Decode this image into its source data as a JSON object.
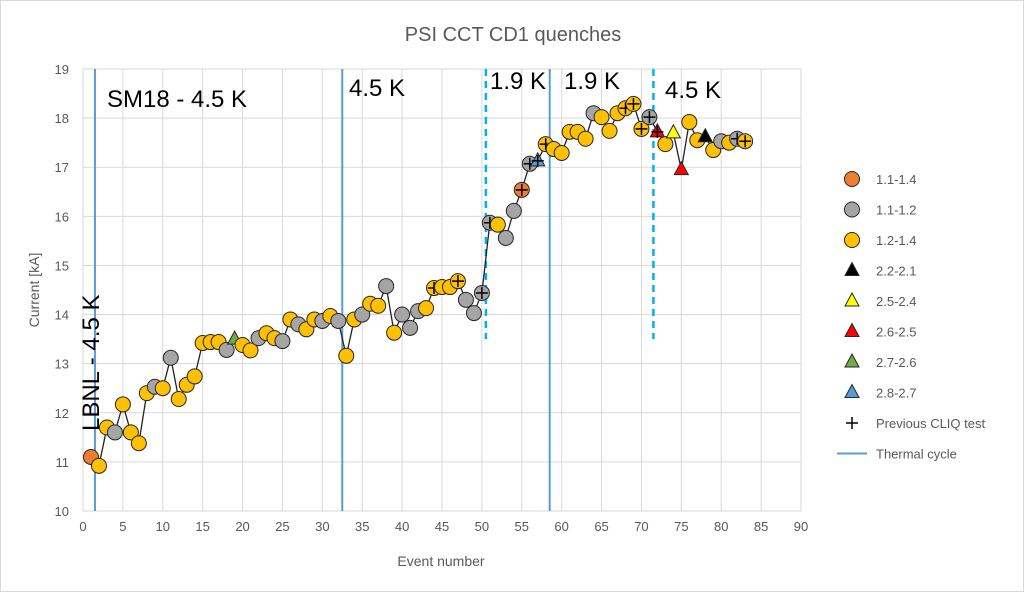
{
  "chart_data": {
    "type": "scatter",
    "title": "PSI CCT CD1 quenches",
    "xlabel": "Event number",
    "ylabel": "Current [kA]",
    "xlim": [
      0,
      90
    ],
    "ylim": [
      10,
      19
    ],
    "xticks": [
      "0",
      "5",
      "10",
      "15",
      "20",
      "25",
      "30",
      "35",
      "40",
      "45",
      "50",
      "55",
      "60",
      "65",
      "70",
      "75",
      "80",
      "85",
      "90"
    ],
    "yticks": [
      "10",
      "11",
      "12",
      "13",
      "14",
      "15",
      "16",
      "17",
      "18",
      "19"
    ],
    "grid": true,
    "legend_position": "right",
    "series": [
      {
        "name": "1.1-1.4",
        "marker": "circle",
        "color": "#ED7D31"
      },
      {
        "name": "1.1-1.2",
        "marker": "circle",
        "color": "#A5A5A5"
      },
      {
        "name": "1.2-1.4",
        "marker": "circle",
        "color": "#FFC000"
      },
      {
        "name": "2.2-2.1",
        "marker": "triangle",
        "color": "#000000"
      },
      {
        "name": "2.5-2.4",
        "marker": "triangle",
        "color": "#FFFF00"
      },
      {
        "name": "2.6-2.5",
        "marker": "triangle",
        "color": "#FF0000"
      },
      {
        "name": "2.7-2.6",
        "marker": "triangle",
        "color": "#70AD47"
      },
      {
        "name": "2.8-2.7",
        "marker": "triangle",
        "color": "#5B9BD5"
      },
      {
        "name": "Previous CLIQ test",
        "marker": "plus",
        "color": "#000000"
      },
      {
        "name": "Thermal cycle",
        "marker": "line",
        "color": "#5B9BD5"
      }
    ],
    "points": [
      [
        1,
        11.1,
        "1.1-1.4",
        0
      ],
      [
        2,
        10.92,
        "1.2-1.4",
        0
      ],
      [
        3,
        11.7,
        "1.2-1.4",
        0
      ],
      [
        4,
        11.6,
        "1.1-1.2",
        0
      ],
      [
        5,
        12.17,
        "1.2-1.4",
        0
      ],
      [
        6,
        11.6,
        "1.2-1.4",
        0
      ],
      [
        7,
        11.38,
        "1.2-1.4",
        0
      ],
      [
        8,
        12.4,
        "1.2-1.4",
        0
      ],
      [
        9,
        12.53,
        "1.1-1.2",
        0
      ],
      [
        10,
        12.5,
        "1.2-1.4",
        0
      ],
      [
        11,
        13.12,
        "1.1-1.2",
        0
      ],
      [
        12,
        12.28,
        "1.2-1.4",
        0
      ],
      [
        13,
        12.57,
        "1.2-1.4",
        0
      ],
      [
        14,
        12.74,
        "1.2-1.4",
        0
      ],
      [
        15,
        13.42,
        "1.2-1.4",
        0
      ],
      [
        16,
        13.44,
        "1.2-1.4",
        0
      ],
      [
        17,
        13.44,
        "1.2-1.4",
        0
      ],
      [
        18,
        13.28,
        "1.1-1.2",
        0
      ],
      [
        19,
        13.5,
        "2.7-2.6",
        0
      ],
      [
        20,
        13.38,
        "1.2-1.4",
        0
      ],
      [
        21,
        13.27,
        "1.2-1.4",
        0
      ],
      [
        22,
        13.52,
        "1.1-1.2",
        0
      ],
      [
        23,
        13.62,
        "1.2-1.4",
        0
      ],
      [
        24,
        13.52,
        "1.2-1.4",
        0
      ],
      [
        25,
        13.46,
        "1.1-1.2",
        0
      ],
      [
        26,
        13.9,
        "1.2-1.4",
        0
      ],
      [
        27,
        13.8,
        "1.1-1.2",
        0
      ],
      [
        28,
        13.7,
        "1.2-1.4",
        0
      ],
      [
        29,
        13.9,
        "1.2-1.4",
        0
      ],
      [
        30,
        13.87,
        "1.1-1.2",
        0
      ],
      [
        31,
        13.97,
        "1.2-1.4",
        0
      ],
      [
        32,
        13.87,
        "1.1-1.2",
        0
      ],
      [
        33,
        13.16,
        "1.2-1.4",
        0
      ],
      [
        34,
        13.9,
        "1.2-1.4",
        0
      ],
      [
        35,
        14.0,
        "1.1-1.2",
        0
      ],
      [
        36,
        14.22,
        "1.2-1.4",
        0
      ],
      [
        37,
        14.18,
        "1.2-1.4",
        0
      ],
      [
        38,
        14.58,
        "1.1-1.2",
        0
      ],
      [
        39,
        13.63,
        "1.2-1.4",
        0
      ],
      [
        40,
        14.0,
        "1.1-1.2",
        0
      ],
      [
        41,
        13.73,
        "1.1-1.2",
        0
      ],
      [
        42,
        14.07,
        "1.1-1.2",
        0
      ],
      [
        43,
        14.13,
        "1.2-1.4",
        0
      ],
      [
        44,
        14.54,
        "1.2-1.4",
        1
      ],
      [
        45,
        14.56,
        "1.2-1.4",
        0
      ],
      [
        46,
        14.56,
        "1.2-1.4",
        0
      ],
      [
        47,
        14.68,
        "1.2-1.4",
        1
      ],
      [
        48,
        14.3,
        "1.1-1.2",
        0
      ],
      [
        49,
        14.03,
        "1.1-1.2",
        0
      ],
      [
        50,
        14.44,
        "1.1-1.2",
        1
      ],
      [
        51,
        15.87,
        "1.1-1.2",
        1
      ],
      [
        52,
        15.83,
        "1.2-1.4",
        0
      ],
      [
        53,
        15.56,
        "1.1-1.2",
        0
      ],
      [
        54,
        16.11,
        "1.1-1.2",
        0
      ],
      [
        55,
        16.54,
        "1.1-1.4",
        1
      ],
      [
        56,
        17.07,
        "1.1-1.2",
        1
      ],
      [
        57,
        17.13,
        "2.8-2.7",
        1
      ],
      [
        58,
        17.47,
        "1.2-1.4",
        1
      ],
      [
        59,
        17.37,
        "1.2-1.4",
        0
      ],
      [
        60,
        17.29,
        "1.2-1.4",
        0
      ],
      [
        61,
        17.72,
        "1.2-1.4",
        0
      ],
      [
        62,
        17.72,
        "1.2-1.4",
        0
      ],
      [
        63,
        17.58,
        "1.2-1.4",
        0
      ],
      [
        64,
        18.1,
        "1.1-1.2",
        0
      ],
      [
        65,
        18.02,
        "1.2-1.4",
        0
      ],
      [
        66,
        17.74,
        "1.2-1.4",
        0
      ],
      [
        67,
        18.1,
        "1.2-1.4",
        0
      ],
      [
        68,
        18.2,
        "1.2-1.4",
        1
      ],
      [
        69,
        18.29,
        "1.2-1.4",
        1
      ],
      [
        70,
        17.78,
        "1.2-1.4",
        1
      ],
      [
        71,
        18.02,
        "1.1-1.2",
        1
      ],
      [
        72,
        17.72,
        "2.6-2.5",
        1
      ],
      [
        73,
        17.47,
        "1.2-1.4",
        0
      ],
      [
        74,
        17.7,
        "2.5-2.4",
        0
      ],
      [
        75,
        16.95,
        "2.6-2.5",
        0
      ],
      [
        76,
        17.92,
        "1.2-1.4",
        0
      ],
      [
        77,
        17.55,
        "1.2-1.4",
        0
      ],
      [
        78,
        17.62,
        "2.2-2.1",
        0
      ],
      [
        79,
        17.35,
        "1.2-1.4",
        0
      ],
      [
        80,
        17.53,
        "1.1-1.2",
        0
      ],
      [
        81,
        17.5,
        "1.2-1.4",
        0
      ],
      [
        82,
        17.58,
        "1.1-1.2",
        1
      ],
      [
        83,
        17.53,
        "1.2-1.4",
        1
      ]
    ],
    "thermal_cycles": [
      1.5,
      32.5,
      58.5
    ],
    "dashed_lines": [
      {
        "x": 50.5,
        "color": "#00B0F0"
      },
      {
        "x": 71.5,
        "color": "#00B0F0"
      }
    ],
    "annotations": [
      "SM18 - 4.5 K",
      "4.5 K",
      "1.9 K",
      "1.9 K",
      "4.5 K",
      "LBNL - 4.5 K"
    ]
  }
}
